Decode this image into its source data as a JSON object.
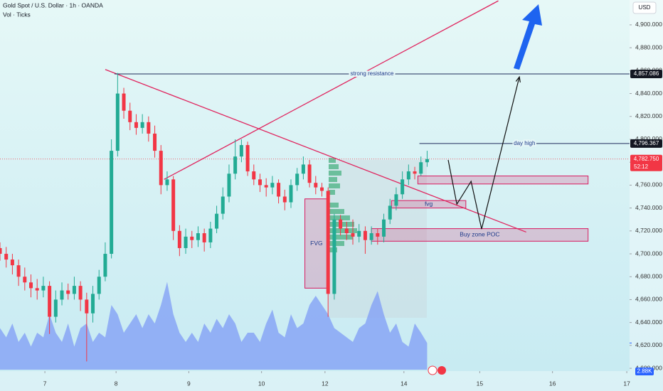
{
  "chart_data": {
    "type": "candlestick",
    "title": "Gold Spot / U.S. Dollar · 1h · OANDA",
    "subtitle": "Vol · Ticks",
    "currency": "USD",
    "x": [
      0,
      2,
      4,
      6,
      8,
      10,
      12,
      14,
      16,
      18,
      20,
      22,
      24,
      26,
      28,
      30,
      32,
      34,
      36,
      38,
      40,
      42,
      44,
      46,
      48,
      50,
      52,
      54,
      56,
      58,
      60,
      62,
      64,
      66,
      68,
      70,
      72,
      74,
      76,
      78,
      80,
      82,
      84,
      86,
      88,
      90,
      92,
      94,
      96,
      98,
      100,
      102,
      104,
      106,
      108,
      110,
      112,
      114,
      116,
      118,
      120,
      122,
      124,
      126,
      128,
      130,
      132,
      134,
      136,
      138
    ],
    "xlim": [
      0,
      203.4
    ],
    "xticks": [
      {
        "value": 14.5,
        "label": "7"
      },
      {
        "value": 37.5,
        "label": "8"
      },
      {
        "value": 61,
        "label": "9"
      },
      {
        "value": 84.5,
        "label": "10"
      },
      {
        "value": 105,
        "label": "12"
      },
      {
        "value": 130.5,
        "label": "14"
      },
      {
        "value": 155,
        "label": "15"
      },
      {
        "value": 178.5,
        "label": "16"
      },
      {
        "value": 202.5,
        "label": "17"
      }
    ],
    "ylim": [
      4598.8,
      4921.7
    ],
    "yticks": [
      {
        "value": 4600,
        "label": "4,600.000"
      },
      {
        "value": 4620,
        "label": "4,620.000"
      },
      {
        "value": 4640,
        "label": "4,640.000"
      },
      {
        "value": 4660,
        "label": "4,660.000"
      },
      {
        "value": 4680,
        "label": "4,680.000"
      },
      {
        "value": 4700,
        "label": "4,700.000"
      },
      {
        "value": 4720,
        "label": "4,720.000"
      },
      {
        "value": 4740,
        "label": "4,740.000"
      },
      {
        "value": 4760,
        "label": "4,760.000"
      },
      {
        "value": 4780,
        "label": "4,780.000"
      },
      {
        "value": 4800,
        "label": "4,800.000"
      },
      {
        "value": 4820,
        "label": "4,820.000"
      },
      {
        "value": 4840,
        "label": "4,840.000"
      },
      {
        "value": 4860,
        "label": "4,860.000"
      },
      {
        "value": 4880,
        "label": "4,880.000"
      },
      {
        "value": 4900,
        "label": "4,900.000"
      }
    ],
    "open": [
      4705,
      4700,
      4695,
      4690,
      4680,
      4675,
      4670,
      4668,
      4672,
      4645,
      4660,
      4668,
      4665,
      4672,
      4660,
      4648,
      4665,
      4680,
      4700,
      4790,
      4840,
      4825,
      4815,
      4810,
      4815,
      4805,
      4790,
      4760,
      4765,
      4720,
      4705,
      4715,
      4712,
      4718,
      4710,
      4722,
      4735,
      4750,
      4770,
      4785,
      4795,
      4772,
      4765,
      4760,
      4758,
      4762,
      4750,
      4745,
      4760,
      4770,
      4778,
      4762,
      4758,
      4755,
      4665,
      4730,
      4722,
      4718,
      4715,
      4720,
      4712,
      4718,
      4715,
      4730,
      4742,
      4752,
      4765,
      4772,
      4770,
      4780
    ],
    "high": [
      4710,
      4706,
      4700,
      4695,
      4688,
      4682,
      4678,
      4680,
      4676,
      4668,
      4675,
      4674,
      4680,
      4676,
      4666,
      4672,
      4686,
      4710,
      4800,
      4858,
      4845,
      4832,
      4822,
      4822,
      4820,
      4812,
      4795,
      4772,
      4768,
      4725,
      4722,
      4720,
      4724,
      4722,
      4728,
      4742,
      4758,
      4778,
      4800,
      4800,
      4798,
      4778,
      4770,
      4766,
      4768,
      4765,
      4756,
      4765,
      4775,
      4785,
      4782,
      4768,
      4762,
      4758,
      4735,
      4734,
      4728,
      4730,
      4726,
      4724,
      4724,
      4722,
      4735,
      4748,
      4758,
      4772,
      4778,
      4776,
      4785,
      4790
    ],
    "low": [
      4694,
      4688,
      4682,
      4672,
      4668,
      4662,
      4660,
      4662,
      4630,
      4640,
      4655,
      4660,
      4660,
      4650,
      4606,
      4640,
      4660,
      4676,
      4696,
      4785,
      4818,
      4808,
      4804,
      4805,
      4798,
      4784,
      4752,
      4755,
      4712,
      4698,
      4700,
      4705,
      4706,
      4702,
      4705,
      4718,
      4730,
      4745,
      4765,
      4780,
      4768,
      4760,
      4754,
      4750,
      4752,
      4744,
      4738,
      4740,
      4755,
      4765,
      4758,
      4752,
      4750,
      4645,
      4660,
      4716,
      4712,
      4708,
      4710,
      4700,
      4708,
      4708,
      4710,
      4726,
      4738,
      4748,
      4760,
      4765,
      4768,
      4776
    ],
    "close": [
      4700,
      4695,
      4690,
      4680,
      4675,
      4670,
      4668,
      4672,
      4645,
      4660,
      4668,
      4665,
      4672,
      4660,
      4648,
      4665,
      4680,
      4700,
      4790,
      4840,
      4825,
      4815,
      4810,
      4815,
      4805,
      4790,
      4760,
      4765,
      4720,
      4705,
      4715,
      4712,
      4718,
      4710,
      4722,
      4735,
      4750,
      4770,
      4785,
      4795,
      4772,
      4765,
      4760,
      4758,
      4762,
      4750,
      4745,
      4760,
      4770,
      4778,
      4762,
      4758,
      4755,
      4665,
      4730,
      4722,
      4718,
      4715,
      4720,
      4712,
      4718,
      4715,
      4730,
      4742,
      4752,
      4765,
      4772,
      4770,
      4780,
      4782.75
    ],
    "up_color": "#22ab94",
    "down_color": "#f23645",
    "volume": {
      "values": [
        4.5,
        3.5,
        5,
        3,
        4,
        2.5,
        4,
        3.5,
        6,
        4,
        3,
        5,
        2.5,
        4.5,
        5,
        3,
        4,
        3.5,
        7,
        6,
        4,
        5,
        6,
        4.5,
        6,
        5,
        7,
        9.5,
        6,
        4,
        3,
        4,
        3,
        5,
        4,
        5.5,
        4.5,
        6,
        5,
        3,
        4,
        4,
        3,
        5,
        6.5,
        4,
        3.5,
        6,
        4.5,
        5,
        7,
        8,
        7,
        6,
        4.5,
        4,
        3.5,
        3,
        4.5,
        5,
        7,
        8.5,
        6,
        4,
        5,
        3,
        2.5,
        5,
        4,
        2.88
      ],
      "color": "#7f9cf5",
      "axis": "y2",
      "last_label": "2.88K"
    },
    "y2lim": [
      0,
      40
    ],
    "levels": [
      {
        "label": "strong resistance",
        "value": 4857.086,
        "value_label": "4,857.086",
        "start": 37,
        "color": "#1e2a5a"
      },
      {
        "label": "day high",
        "value": 4796.367,
        "value_label": "4,796.367",
        "start": 135.5,
        "color": "#1e2a5a"
      }
    ],
    "last_price": {
      "value": 4782.75,
      "label": "4,782.750",
      "countdown": "52:12",
      "color": "#f23645"
    },
    "zones": [
      {
        "label": "FVG",
        "x": [
          98.5,
          106
        ],
        "y": [
          4670,
          4748
        ]
      },
      {
        "x": [
          135,
          190
        ],
        "y": [
          4761,
          4768
        ]
      },
      {
        "label": "fvg",
        "x": [
          126.5,
          150.5
        ],
        "y": [
          4740,
          4746.5
        ]
      },
      {
        "label": "Buy zone POC",
        "x": [
          120,
          190
        ],
        "y": [
          4711,
          4722
        ]
      }
    ],
    "zone_color": "#d81b60",
    "trend_lines": [
      {
        "x": [
          34,
          170
        ],
        "y": [
          4861,
          4719
        ]
      },
      {
        "x": [
          53,
          161
        ],
        "y": [
          4765,
          4921
        ]
      }
    ],
    "trend_color": "#e0245e",
    "projection": {
      "x": [
        144.8,
        147.6,
        152.2,
        155.6,
        167.8
      ],
      "y": [
        4782,
        4743.4,
        4763.3,
        4721.7,
        4854.6
      ],
      "color": "#111111"
    }
  }
}
